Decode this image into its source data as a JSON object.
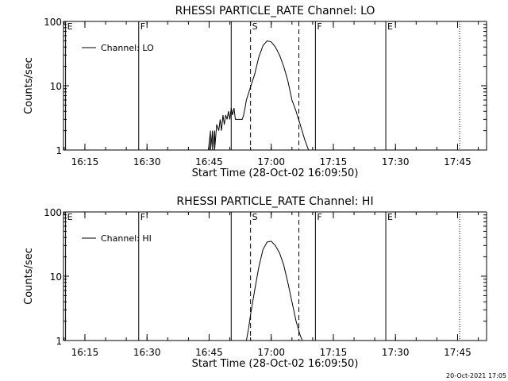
{
  "footer_stamp": "20-Oct-2021 17:05",
  "chart_data": [
    {
      "type": "line",
      "title": "RHESSI PARTICLE_RATE Channel: LO",
      "xlabel": "Start Time (28-Oct-02 16:09:50)",
      "ylabel": "Counts/sec",
      "yscale": "log",
      "ylim": [
        1,
        100
      ],
      "xlim": [
        "16:09:50",
        "17:52:00"
      ],
      "x_ticks": [
        "16:15",
        "16:30",
        "16:45",
        "17:00",
        "17:15",
        "17:30",
        "17:45"
      ],
      "y_ticks": [
        "1",
        "10",
        "100"
      ],
      "legend_position": "top-left",
      "series": [
        {
          "name": "Channel: LO",
          "x": [
            "16:44:50",
            "16:45:20",
            "16:45:20",
            "16:45:50",
            "16:45:50",
            "16:46:20",
            "16:46:20",
            "16:46:50",
            "16:47:20",
            "16:47:40",
            "16:48:00",
            "16:48:20",
            "16:48:40",
            "16:49:00",
            "16:49:20",
            "16:49:40",
            "16:50:00",
            "16:50:20",
            "16:50:40",
            "16:51:00",
            "16:51:20",
            "16:51:40",
            "16:52:00",
            "16:52:20",
            "16:52:40",
            "16:53:00",
            "16:53:20",
            "16:53:40",
            "16:54:00",
            "16:56:00",
            "16:57:00",
            "16:58:00",
            "16:59:00",
            "17:00:00",
            "17:01:00",
            "17:02:00",
            "17:03:00",
            "17:04:00",
            "17:05:00",
            "17:06:00",
            "17:07:00",
            "17:08:00",
            "17:09:00",
            "17:10:00"
          ],
          "y": [
            1,
            2,
            1,
            2,
            1,
            2,
            1,
            2.5,
            2,
            3,
            2,
            3.5,
            2.5,
            3.5,
            3,
            4,
            3,
            4.5,
            3.5,
            4.5,
            3,
            3,
            3,
            3,
            3,
            3,
            3.5,
            4.5,
            6,
            15,
            28,
            42,
            50,
            48,
            40,
            30,
            20,
            12,
            6,
            4,
            2.5,
            1.5,
            1,
            1
          ]
        }
      ],
      "annotations": [
        {
          "label": "E",
          "x": "16:10:20",
          "style": "solid"
        },
        {
          "label": "F",
          "x": "16:28:00",
          "style": "solid"
        },
        {
          "label": "",
          "x": "16:50:20",
          "style": "solid"
        },
        {
          "label": "S",
          "x": "16:55:00",
          "style": "dashed"
        },
        {
          "label": "",
          "x": "17:06:40",
          "style": "dashed"
        },
        {
          "label": "F",
          "x": "17:10:40",
          "style": "solid"
        },
        {
          "label": "E",
          "x": "17:27:40",
          "style": "solid"
        },
        {
          "label": "",
          "x": "17:45:30",
          "style": "dotted"
        }
      ]
    },
    {
      "type": "line",
      "title": "RHESSI PARTICLE_RATE Channel: HI",
      "xlabel": "Start Time (28-Oct-02 16:09:50)",
      "ylabel": "Counts/sec",
      "yscale": "log",
      "ylim": [
        1,
        100
      ],
      "xlim": [
        "16:09:50",
        "17:52:00"
      ],
      "x_ticks": [
        "16:15",
        "16:30",
        "16:45",
        "17:00",
        "17:15",
        "17:30",
        "17:45"
      ],
      "y_ticks": [
        "1",
        "10",
        "100"
      ],
      "legend_position": "top-left",
      "series": [
        {
          "name": "Channel: HI",
          "x": [
            "16:54:00",
            "16:54:30",
            "16:55:00",
            "16:56:00",
            "16:57:00",
            "16:58:00",
            "16:59:00",
            "17:00:00",
            "17:01:00",
            "17:02:00",
            "17:03:00",
            "17:04:00",
            "17:05:00",
            "17:06:00",
            "17:07:00",
            "17:07:30"
          ],
          "y": [
            1,
            1.5,
            2.5,
            6,
            14,
            26,
            34,
            35,
            30,
            23,
            15,
            8,
            4,
            2,
            1.2,
            1
          ]
        }
      ],
      "annotations": [
        {
          "label": "E",
          "x": "16:10:20",
          "style": "solid"
        },
        {
          "label": "F",
          "x": "16:28:00",
          "style": "solid"
        },
        {
          "label": "",
          "x": "16:50:20",
          "style": "solid"
        },
        {
          "label": "S",
          "x": "16:55:00",
          "style": "dashed"
        },
        {
          "label": "",
          "x": "17:06:40",
          "style": "dashed"
        },
        {
          "label": "F",
          "x": "17:10:40",
          "style": "solid"
        },
        {
          "label": "E",
          "x": "17:27:40",
          "style": "solid"
        },
        {
          "label": "",
          "x": "17:45:30",
          "style": "dotted"
        }
      ]
    }
  ]
}
